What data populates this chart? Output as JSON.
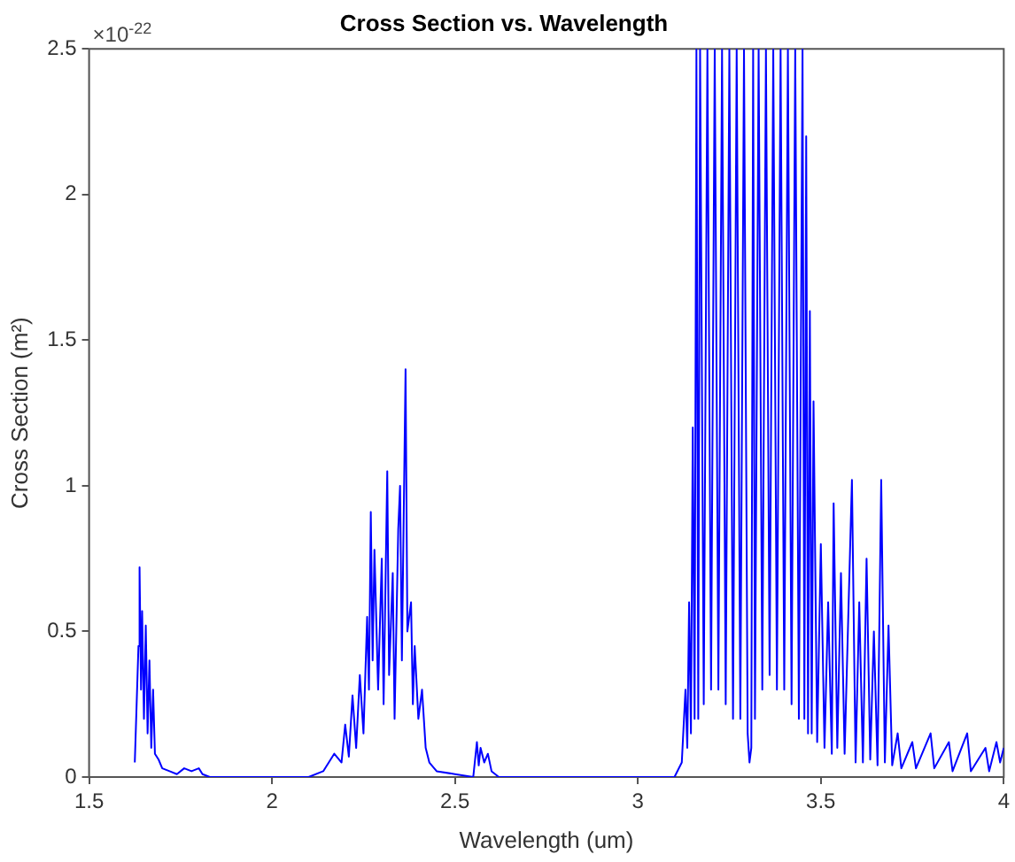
{
  "chart_data": {
    "type": "line",
    "title": "Cross Section vs. Wavelength",
    "xlabel": "Wavelength (um)",
    "ylabel": "Cross Section (m²)",
    "annotations": [
      "×10$^{-22}$"
    ],
    "xlim": [
      1.5,
      4
    ],
    "xticks": [
      1.5,
      2,
      2.5,
      3,
      3.5,
      4
    ],
    "ylim": [
      0,
      2.5
    ],
    "yticks": [
      0,
      0.5,
      1,
      1.5,
      2,
      2.5
    ],
    "grid": false,
    "legend": false,
    "marker": "none",
    "line_style": "solid",
    "series": [
      {
        "color": "#0000ff",
        "x": [
          1.625,
          1.63,
          1.635,
          1.638,
          1.642,
          1.645,
          1.65,
          1.655,
          1.66,
          1.665,
          1.67,
          1.675,
          1.68,
          1.69,
          1.7,
          1.72,
          1.74,
          1.76,
          1.78,
          1.8,
          1.81,
          1.83,
          2.1,
          2.14,
          2.17,
          2.19,
          2.2,
          2.21,
          2.22,
          2.23,
          2.24,
          2.25,
          2.26,
          2.265,
          2.27,
          2.275,
          2.28,
          2.29,
          2.3,
          2.305,
          2.315,
          2.32,
          2.33,
          2.335,
          2.345,
          2.35,
          2.355,
          2.365,
          2.37,
          2.38,
          2.385,
          2.39,
          2.4,
          2.41,
          2.42,
          2.43,
          2.45,
          2.5,
          2.55,
          2.56,
          2.565,
          2.57,
          2.58,
          2.59,
          2.6,
          2.62,
          3.1,
          3.12,
          3.13,
          3.135,
          3.14,
          3.145,
          3.15,
          3.155,
          3.16,
          3.165,
          3.17,
          3.18,
          3.19,
          3.2,
          3.21,
          3.22,
          3.23,
          3.24,
          3.25,
          3.26,
          3.27,
          3.28,
          3.29,
          3.3,
          3.305,
          3.31,
          3.315,
          3.32,
          3.33,
          3.34,
          3.35,
          3.36,
          3.37,
          3.38,
          3.39,
          3.4,
          3.41,
          3.42,
          3.43,
          3.44,
          3.45,
          3.455,
          3.46,
          3.465,
          3.47,
          3.475,
          3.48,
          3.49,
          3.5,
          3.51,
          3.52,
          3.53,
          3.535,
          3.545,
          3.555,
          3.565,
          3.575,
          3.585,
          3.595,
          3.605,
          3.615,
          3.625,
          3.635,
          3.645,
          3.655,
          3.665,
          3.675,
          3.685,
          3.695,
          3.71,
          3.72,
          3.75,
          3.76,
          3.8,
          3.81,
          3.85,
          3.86,
          3.9,
          3.91,
          3.95,
          3.96,
          3.98,
          3.99,
          4
        ],
        "values": [
          0.05,
          0.25,
          0.45,
          0.72,
          0.3,
          0.57,
          0.2,
          0.52,
          0.15,
          0.4,
          0.1,
          0.3,
          0.08,
          0.06,
          0.03,
          0.02,
          0.01,
          0.03,
          0.02,
          0.03,
          0.01,
          0,
          0,
          0.02,
          0.08,
          0.05,
          0.18,
          0.07,
          0.28,
          0.1,
          0.35,
          0.15,
          0.55,
          0.3,
          0.91,
          0.4,
          0.78,
          0.3,
          0.75,
          0.25,
          1.05,
          0.35,
          0.7,
          0.2,
          0.85,
          1.0,
          0.4,
          1.4,
          0.5,
          0.6,
          0.25,
          0.45,
          0.2,
          0.3,
          0.1,
          0.05,
          0.02,
          0.01,
          0,
          0.12,
          0.04,
          0.1,
          0.05,
          0.08,
          0.02,
          0,
          0,
          0.05,
          0.3,
          0.1,
          0.6,
          0.15,
          1.2,
          0.2,
          2.5,
          0.2,
          2.5,
          0.25,
          2.5,
          0.3,
          2.5,
          0.3,
          2.5,
          0.25,
          2.5,
          0.2,
          2.5,
          0.2,
          2.5,
          0.15,
          0.05,
          0.1,
          2.5,
          0.2,
          2.5,
          0.3,
          2.5,
          0.35,
          2.5,
          0.3,
          2.5,
          0.3,
          2.5,
          0.25,
          2.5,
          0.2,
          2.5,
          0.2,
          2.2,
          0.15,
          1.6,
          0.15,
          1.29,
          0.12,
          0.8,
          0.1,
          0.6,
          0.08,
          0.94,
          0.1,
          0.7,
          0.08,
          0.55,
          1.02,
          0.05,
          0.6,
          0.05,
          0.75,
          0.06,
          0.5,
          0.04,
          1.02,
          0.05,
          0.52,
          0.04,
          0.15,
          0.03,
          0.12,
          0.03,
          0.15,
          0.03,
          0.12,
          0.02,
          0.15,
          0.02,
          0.1,
          0.02,
          0.12,
          0.05,
          0.1
        ]
      }
    ]
  }
}
